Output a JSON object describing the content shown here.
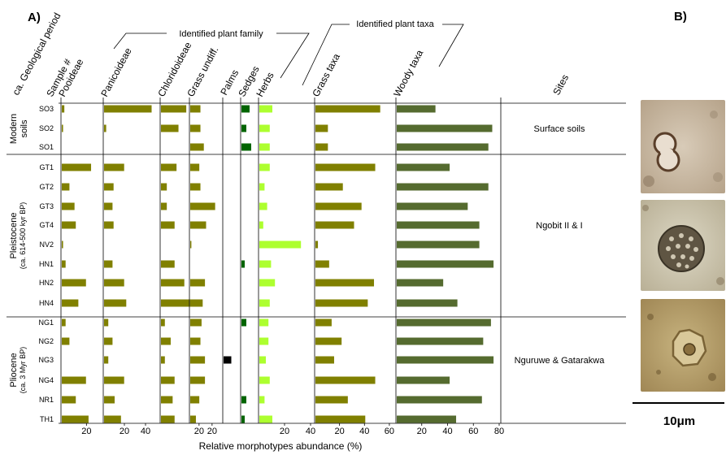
{
  "panel_labels": {
    "a": "A)",
    "b": "B)"
  },
  "headers": {
    "period": "ca. Geological period",
    "sample": "Sample #",
    "sites": "Sites",
    "family_group": "Identified plant family",
    "taxa_group": "Identified plant taxa"
  },
  "periods": [
    {
      "label": "Modern soils",
      "sub": ""
    },
    {
      "label": "Pleistocene",
      "sub": "(ca. 614-500 kyr BP)"
    },
    {
      "label": "Pliocene",
      "sub": "(ca. 3 Myr BP)"
    }
  ],
  "sites": [
    "Surface soils",
    "Ngobit II & I",
    "Nguruwe & Gatarakwa"
  ],
  "scale_label": "10μm",
  "chart_data": {
    "type": "bar",
    "orientation": "horizontal",
    "xlabel": "Relative morphotypes abundance (%)",
    "categories": [
      "SO3",
      "SO2",
      "SO1",
      "GT1",
      "GT2",
      "GT3",
      "GT4",
      "NV2",
      "HN1",
      "HN2",
      "HN4",
      "NG1",
      "NG2",
      "NG3",
      "NG4",
      "NR1",
      "TH1"
    ],
    "series": [
      {
        "name": "Pooideae",
        "color": "#808000",
        "xlim": [
          0,
          30
        ],
        "ticks": [
          20
        ],
        "values": [
          2,
          1,
          0,
          23,
          6,
          10,
          11,
          1,
          3,
          19,
          13,
          3,
          6,
          0,
          19,
          11,
          21
        ]
      },
      {
        "name": "Panicoideae",
        "color": "#808000",
        "xlim": [
          0,
          50
        ],
        "ticks": [
          20,
          40
        ],
        "values": [
          45,
          2,
          0,
          19,
          9,
          8,
          9,
          0,
          8,
          19,
          21,
          4,
          8,
          4,
          19,
          10,
          16
        ]
      },
      {
        "name": "Chloridoideae",
        "color": "#808000",
        "xlim": [
          0,
          28
        ],
        "ticks": [
          20
        ],
        "values": [
          13,
          9,
          0,
          8,
          3,
          3,
          7,
          0,
          7,
          12,
          15,
          2,
          5,
          2,
          7,
          6,
          7
        ]
      },
      {
        "name": "Grass undiff.",
        "color": "#808000",
        "xlim": [
          0,
          28
        ],
        "ticks": [
          20
        ],
        "values": [
          9,
          9,
          12,
          8,
          9,
          22,
          14,
          1,
          0,
          13,
          11,
          10,
          9,
          13,
          13,
          8,
          5
        ]
      },
      {
        "name": "Palms",
        "color": "#000000",
        "xlim": [
          0,
          10
        ],
        "ticks": [],
        "values": [
          0,
          0,
          0,
          0,
          0,
          0,
          0,
          0,
          0,
          0,
          0,
          0,
          0,
          5,
          0,
          0,
          0
        ]
      },
      {
        "name": "Sedges",
        "color": "#006400",
        "xlim": [
          0,
          10
        ],
        "ticks": [],
        "values": [
          5,
          3,
          6,
          0,
          0,
          0,
          0,
          0,
          2,
          0,
          0,
          3,
          0,
          0,
          0,
          3,
          2
        ]
      },
      {
        "name": "Herbs",
        "color": "#adff2f",
        "xlim": [
          0,
          40
        ],
        "ticks": [
          20,
          40
        ],
        "values": [
          10,
          8,
          8,
          8,
          4,
          6,
          3,
          32,
          9,
          12,
          8,
          7,
          7,
          5,
          8,
          4,
          10
        ]
      },
      {
        "name": "Grass taxa",
        "color": "#808000",
        "xlim": [
          0,
          62
        ],
        "ticks": [
          20,
          40,
          60
        ],
        "values": [
          52,
          10,
          10,
          48,
          22,
          37,
          31,
          2,
          11,
          47,
          42,
          13,
          21,
          15,
          48,
          26,
          40
        ]
      },
      {
        "name": "Woody taxa",
        "color": "#556b2f",
        "xlim": [
          0,
          80
        ],
        "ticks": [
          20,
          40,
          60,
          80
        ],
        "values": [
          30,
          74,
          71,
          41,
          71,
          55,
          64,
          64,
          75,
          36,
          47,
          73,
          67,
          75,
          41,
          66,
          46
        ]
      }
    ]
  }
}
